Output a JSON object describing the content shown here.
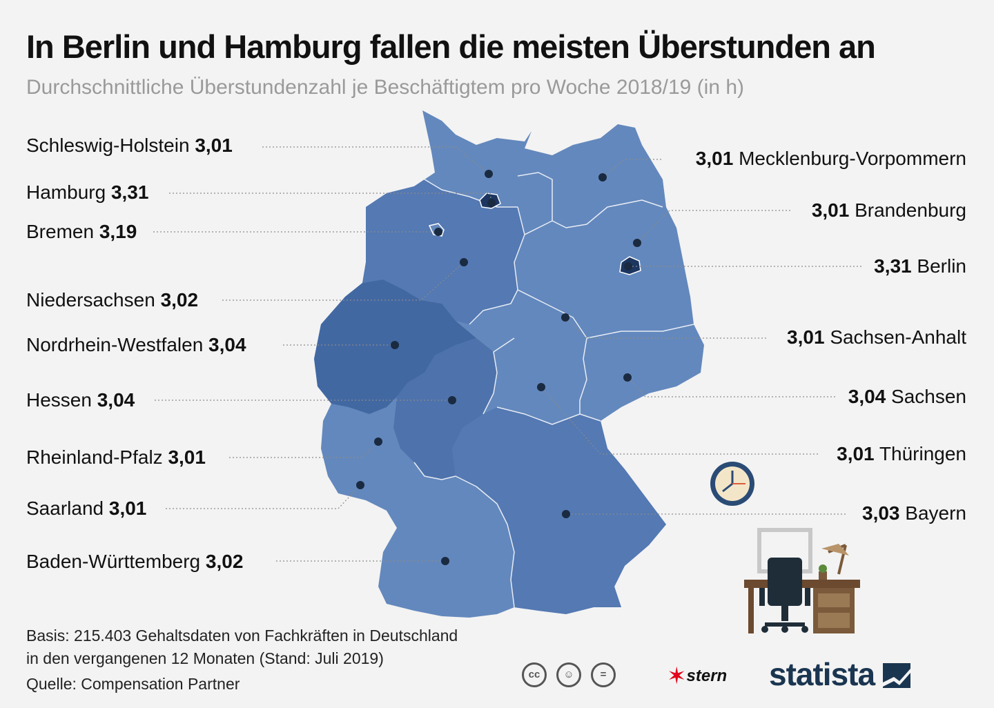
{
  "title": "In Berlin und Hamburg fallen die meisten Überstunden an",
  "subtitle": "Durchschnittliche Überstundenzahl je Beschäftigtem pro Woche 2018/19 (in h)",
  "states_left": [
    {
      "name": "Schleswig-Holstein",
      "value": "3,01"
    },
    {
      "name": "Hamburg",
      "value": "3,31"
    },
    {
      "name": "Bremen",
      "value": "3,19"
    },
    {
      "name": "Niedersachsen",
      "value": "3,02"
    },
    {
      "name": "Nordrhein-Westfalen",
      "value": "3,04"
    },
    {
      "name": "Hessen",
      "value": "3,04"
    },
    {
      "name": "Rheinland-Pfalz",
      "value": "3,01"
    },
    {
      "name": "Saarland",
      "value": "3,01"
    },
    {
      "name": "Baden-Württemberg",
      "value": "3,02"
    }
  ],
  "states_right": [
    {
      "name": "Mecklenburg-Vorpommern",
      "value": "3,01"
    },
    {
      "name": "Brandenburg",
      "value": "3,01"
    },
    {
      "name": "Berlin",
      "value": "3,31"
    },
    {
      "name": "Sachsen-Anhalt",
      "value": "3,01"
    },
    {
      "name": "Sachsen",
      "value": "3,04"
    },
    {
      "name": "Thüringen",
      "value": "3,01"
    },
    {
      "name": "Bayern",
      "value": "3,03"
    }
  ],
  "footer": {
    "basis_line1": "Basis: 215.403 Gehaltsdaten von Fachkräften in Deutschland",
    "basis_line2": "in den vergangenen 12 Monaten (Stand: Juli 2019)",
    "source": "Quelle: Compensation Partner"
  },
  "logos": {
    "cc_icons": [
      "cc-icon",
      "by-icon",
      "nd-icon"
    ],
    "stern": "stern",
    "statista": "statista"
  },
  "colors": {
    "light": "#6388bd",
    "medium": "#5479b3",
    "dark": "#4268a2",
    "city": "#1c3660",
    "background": "#f3f3f3"
  }
}
